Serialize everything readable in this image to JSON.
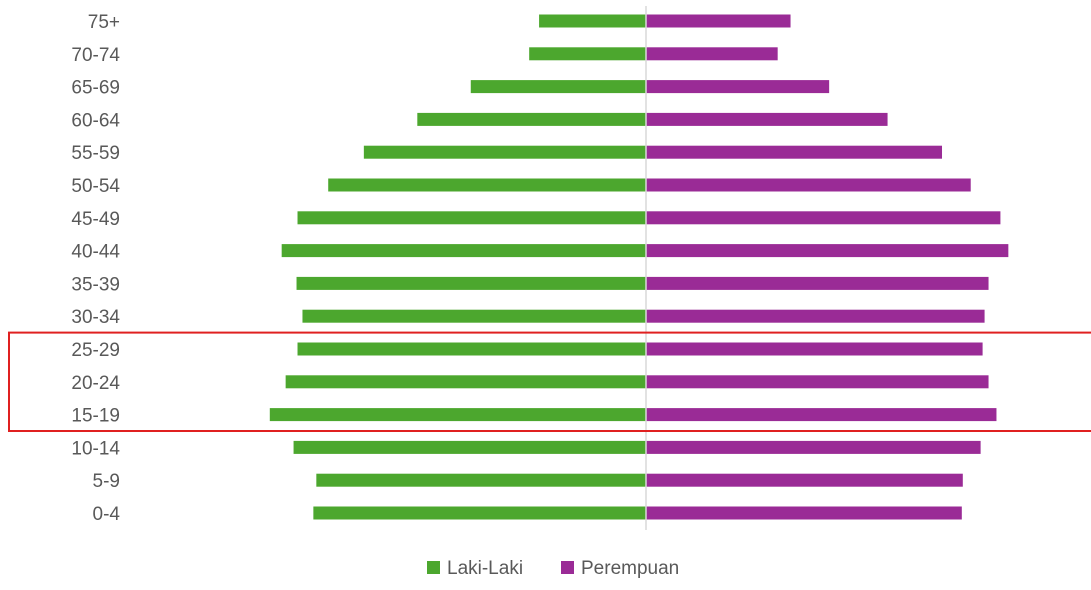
{
  "chart_data": {
    "type": "bar",
    "orientation": "horizontal",
    "layout": "population-pyramid",
    "categories": [
      "75+",
      "70-74",
      "65-69",
      "60-64",
      "55-59",
      "50-54",
      "45-49",
      "40-44",
      "35-39",
      "30-34",
      "25-29",
      "20-24",
      "15-19",
      "10-14",
      "5-9",
      "0-4"
    ],
    "series": [
      {
        "name": "Laki-Laki",
        "color": "#4ca72e",
        "side": "left",
        "values": [
          108,
          118,
          177,
          231,
          285,
          321,
          352,
          368,
          353,
          347,
          352,
          364,
          380,
          356,
          333,
          336
        ]
      },
      {
        "name": "Perempuan",
        "color": "#9a2b96",
        "side": "right",
        "values": [
          146,
          133,
          185,
          244,
          299,
          328,
          358,
          366,
          346,
          342,
          340,
          346,
          354,
          338,
          320,
          319
        ]
      }
    ],
    "xlim": [
      -380,
      380
    ],
    "axis_line_color": "#d9d9d9",
    "grid": false,
    "legend": {
      "position": "bottom",
      "entries": [
        "Laki-Laki",
        "Perempuan"
      ]
    },
    "highlight": {
      "categories": [
        "25-29",
        "20-24",
        "15-19"
      ],
      "color": "#e02020"
    }
  }
}
